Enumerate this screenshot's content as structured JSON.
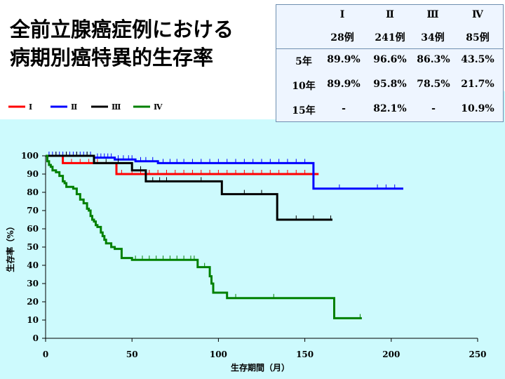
{
  "slide": {
    "title_line1": "全前立腺癌症例における",
    "title_line2": "病期別癌特異的生存率"
  },
  "table": {
    "columns": [
      {
        "stage": "Ⅰ",
        "count": "28例"
      },
      {
        "stage": "Ⅱ",
        "count": "241例"
      },
      {
        "stage": "Ⅲ",
        "count": "34例"
      },
      {
        "stage": "Ⅳ",
        "count": "85例"
      }
    ],
    "rows": [
      {
        "label": "5年",
        "values": [
          "89.9%",
          "96.6%",
          "86.3%",
          "43.5%"
        ]
      },
      {
        "label": "10年",
        "values": [
          "89.9%",
          "95.8%",
          "78.5%",
          "21.7%"
        ]
      },
      {
        "label": "15年",
        "values": [
          "-",
          "82.1%",
          "-",
          "10.9%"
        ]
      }
    ]
  },
  "chart_data": {
    "type": "line",
    "title": "",
    "xlabel": "生存期間（月）",
    "ylabel": "生存率（%）",
    "xlim": [
      0,
      250
    ],
    "ylim": [
      0,
      100
    ],
    "xticks": [
      "0",
      "50",
      "100",
      "150",
      "200",
      "250"
    ],
    "yticks": [
      "0",
      "10",
      "20",
      "30",
      "40",
      "50",
      "60",
      "70",
      "80",
      "90",
      "100"
    ],
    "grid": false,
    "legend_position": "top-left",
    "series": [
      {
        "name": "Ⅰ",
        "color": "#ff0000",
        "x": [
          0,
          10,
          10,
          41,
          41,
          158
        ],
        "y": [
          100,
          100,
          96,
          96,
          90,
          90
        ],
        "censored": [
          [
            15,
            96
          ],
          [
            20,
            96
          ],
          [
            25,
            96
          ],
          [
            30,
            96
          ],
          [
            44,
            90
          ],
          [
            50,
            90
          ],
          [
            55,
            90
          ],
          [
            60,
            90
          ],
          [
            65,
            90
          ],
          [
            70,
            90
          ],
          [
            75,
            90
          ],
          [
            80,
            90
          ],
          [
            85,
            90
          ],
          [
            90,
            90
          ],
          [
            95,
            90
          ],
          [
            100,
            90
          ],
          [
            105,
            90
          ],
          [
            110,
            90
          ],
          [
            115,
            90
          ],
          [
            120,
            90
          ],
          [
            125,
            90
          ],
          [
            130,
            90
          ],
          [
            135,
            90
          ],
          [
            140,
            90
          ],
          [
            145,
            90
          ],
          [
            150,
            90
          ],
          [
            155,
            90
          ]
        ]
      },
      {
        "name": "Ⅱ",
        "color": "#0000ff",
        "x": [
          0,
          28,
          28,
          40,
          40,
          52,
          52,
          65,
          65,
          155,
          155,
          207
        ],
        "y": [
          100,
          100,
          99,
          99,
          98,
          98,
          97,
          97,
          96,
          96,
          82,
          82
        ],
        "censored": [
          [
            2,
            100
          ],
          [
            4,
            100
          ],
          [
            6,
            100
          ],
          [
            8,
            100
          ],
          [
            10,
            100
          ],
          [
            12,
            100
          ],
          [
            14,
            100
          ],
          [
            16,
            100
          ],
          [
            18,
            100
          ],
          [
            20,
            100
          ],
          [
            22,
            100
          ],
          [
            24,
            100
          ],
          [
            26,
            100
          ],
          [
            30,
            99
          ],
          [
            32,
            99
          ],
          [
            34,
            99
          ],
          [
            36,
            99
          ],
          [
            38,
            99
          ],
          [
            42,
            98
          ],
          [
            45,
            98
          ],
          [
            48,
            98
          ],
          [
            50,
            98
          ],
          [
            55,
            97
          ],
          [
            58,
            97
          ],
          [
            62,
            97
          ],
          [
            68,
            96
          ],
          [
            72,
            96
          ],
          [
            76,
            96
          ],
          [
            80,
            96
          ],
          [
            85,
            96
          ],
          [
            90,
            96
          ],
          [
            95,
            96
          ],
          [
            100,
            96
          ],
          [
            105,
            96
          ],
          [
            110,
            96
          ],
          [
            115,
            96
          ],
          [
            120,
            96
          ],
          [
            125,
            96
          ],
          [
            130,
            96
          ],
          [
            135,
            96
          ],
          [
            140,
            96
          ],
          [
            145,
            96
          ],
          [
            150,
            96
          ],
          [
            170,
            82
          ],
          [
            192,
            82
          ],
          [
            197,
            82
          ],
          [
            202,
            82
          ]
        ]
      },
      {
        "name": "Ⅲ",
        "color": "#000000",
        "x": [
          0,
          28,
          28,
          50,
          50,
          58,
          58,
          102,
          102,
          134,
          134,
          166
        ],
        "y": [
          100,
          100,
          96,
          96,
          92,
          92,
          86,
          86,
          79,
          79,
          65,
          65
        ],
        "censored": [
          [
            6,
            100
          ],
          [
            12,
            100
          ],
          [
            18,
            100
          ],
          [
            24,
            100
          ],
          [
            35,
            96
          ],
          [
            42,
            96
          ],
          [
            55,
            92
          ],
          [
            62,
            86
          ],
          [
            66,
            86
          ],
          [
            70,
            86
          ],
          [
            90,
            86
          ],
          [
            115,
            79
          ],
          [
            125,
            79
          ],
          [
            145,
            65
          ],
          [
            155,
            65
          ],
          [
            165,
            65
          ]
        ]
      },
      {
        "name": "Ⅳ",
        "color": "#008000",
        "x": [
          0,
          1,
          1,
          2,
          2,
          3,
          3,
          4,
          4,
          6,
          6,
          8,
          8,
          10,
          10,
          11,
          11,
          12,
          12,
          16,
          16,
          18,
          18,
          20,
          20,
          22,
          22,
          24,
          24,
          25,
          25,
          26,
          26,
          27,
          27,
          28,
          28,
          29,
          29,
          30,
          30,
          32,
          32,
          33,
          33,
          34,
          34,
          35,
          35,
          38,
          38,
          40,
          40,
          44,
          44,
          50,
          50,
          88,
          88,
          95,
          95,
          96,
          96,
          97,
          97,
          105,
          105,
          167,
          167,
          183
        ],
        "y": [
          100,
          100,
          97,
          97,
          95,
          95,
          94,
          94,
          92,
          92,
          91,
          91,
          89,
          89,
          86,
          86,
          85,
          85,
          83,
          83,
          82,
          82,
          79,
          79,
          76,
          76,
          74,
          74,
          71,
          71,
          70,
          70,
          67,
          67,
          65,
          65,
          64,
          64,
          62,
          62,
          61,
          61,
          58,
          58,
          56,
          56,
          54,
          54,
          52,
          52,
          50,
          50,
          49,
          49,
          44,
          44,
          43,
          43,
          39,
          39,
          34,
          34,
          30,
          30,
          25,
          25,
          22,
          22,
          11,
          11
        ],
        "censored": [
          [
            52,
            43
          ],
          [
            56,
            43
          ],
          [
            60,
            43
          ],
          [
            64,
            43
          ],
          [
            68,
            43
          ],
          [
            72,
            43
          ],
          [
            76,
            43
          ],
          [
            80,
            43
          ],
          [
            84,
            43
          ],
          [
            86,
            43
          ],
          [
            92,
            39
          ],
          [
            110,
            22
          ],
          [
            132,
            22
          ],
          [
            182,
            11
          ]
        ]
      }
    ]
  }
}
